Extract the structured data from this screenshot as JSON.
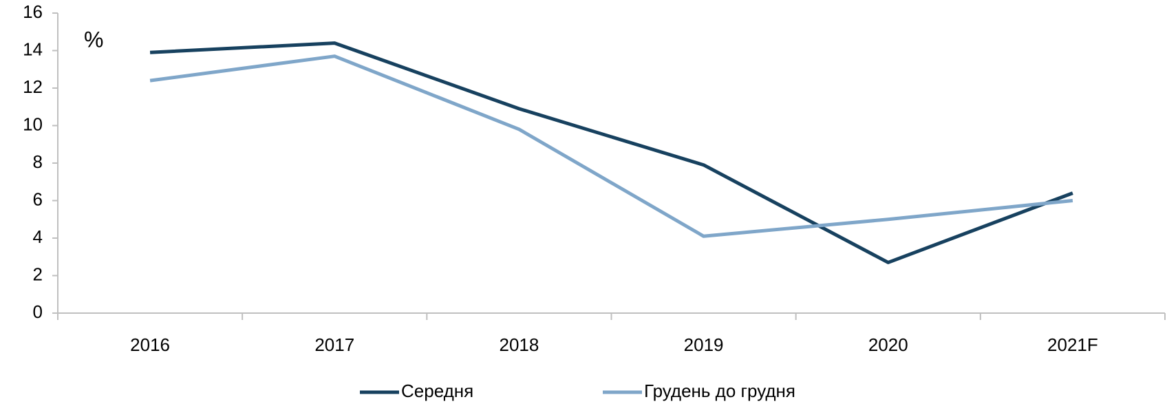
{
  "chart_data": {
    "type": "line",
    "annotation": "%",
    "categories": [
      "2016",
      "2017",
      "2018",
      "2019",
      "2020",
      "2021F"
    ],
    "series": [
      {
        "name": "Середня",
        "color": "#17415f",
        "values": [
          13.9,
          14.4,
          10.9,
          7.9,
          2.7,
          6.4
        ]
      },
      {
        "name": "Грудень до грудня",
        "color": "#7fa6c9",
        "values": [
          12.4,
          13.7,
          9.8,
          4.1,
          5.0,
          6.0
        ]
      }
    ],
    "ylim": [
      0,
      16
    ],
    "yticks": [
      0,
      2,
      4,
      6,
      8,
      10,
      12,
      14,
      16
    ],
    "grid": false,
    "legend": "bottom"
  }
}
